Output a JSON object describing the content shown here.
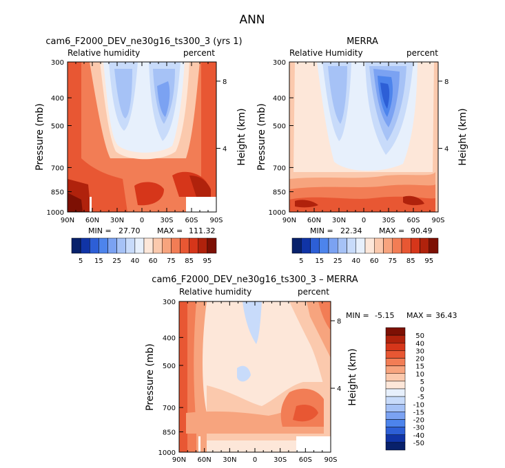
{
  "figure": {
    "title": "ANN"
  },
  "chart_data": [
    {
      "type": "heatmap",
      "title": "cam6_F2000_DEV_ne30g16_ts300_3 (yrs 1)",
      "variable": "Relative humidity",
      "units": "percent",
      "ylabel": "Pressure (mb)",
      "y2label": "Height (km)",
      "x_ticks": [
        "90N",
        "60N",
        "30N",
        "0",
        "30S",
        "60S",
        "90S"
      ],
      "y_ticks": [
        "300",
        "400",
        "500",
        "700",
        "850",
        "1000"
      ],
      "y2_ticks": [
        "8",
        "4"
      ],
      "stats": {
        "min_label": "MIN =",
        "min": "27.70",
        "max_label": "MAX =",
        "max": "111.32"
      },
      "colorbar": {
        "labels": [
          "5",
          "15",
          "25",
          "40",
          "60",
          "75",
          "85",
          "95"
        ],
        "colors": [
          "#08216b",
          "#1034a6",
          "#2d5fd6",
          "#4d84ec",
          "#7ba2f2",
          "#a6c2f6",
          "#c8dbfa",
          "#e7f0fc",
          "#fde7d9",
          "#fbc9ad",
          "#f7a47e",
          "#f27d55",
          "#e85733",
          "#d6361a",
          "#b0220c",
          "#7d1004"
        ]
      }
    },
    {
      "type": "heatmap",
      "title": "MERRA",
      "variable": "Relative Humidity",
      "units": "percent",
      "ylabel": "Pressure (mb)",
      "y2label": "Height (km)",
      "x_ticks": [
        "90N",
        "60N",
        "30N",
        "0",
        "30S",
        "60S",
        "90S"
      ],
      "y_ticks": [
        "300",
        "400",
        "500",
        "700",
        "850",
        "1000"
      ],
      "y2_ticks": [
        "8",
        "4"
      ],
      "stats": {
        "min_label": "MIN =",
        "min": "22.34",
        "max_label": "MAX =",
        "max": "90.49"
      },
      "colorbar": {
        "labels": [
          "5",
          "15",
          "25",
          "40",
          "60",
          "75",
          "85",
          "95"
        ],
        "colors": [
          "#08216b",
          "#1034a6",
          "#2d5fd6",
          "#4d84ec",
          "#7ba2f2",
          "#a6c2f6",
          "#c8dbfa",
          "#e7f0fc",
          "#fde7d9",
          "#fbc9ad",
          "#f7a47e",
          "#f27d55",
          "#e85733",
          "#d6361a",
          "#b0220c",
          "#7d1004"
        ]
      }
    },
    {
      "type": "heatmap",
      "title": "cam6_F2000_DEV_ne30g16_ts300_3 – MERRA",
      "variable": "Relative humidity",
      "units": "percent",
      "ylabel": "Pressure (mb)",
      "y2label": "Height (km)",
      "x_ticks": [
        "90N",
        "60N",
        "30N",
        "0",
        "30S",
        "60S",
        "90S"
      ],
      "y_ticks": [
        "300",
        "400",
        "500",
        "700",
        "850",
        "1000"
      ],
      "y2_ticks": [
        "8",
        "4"
      ],
      "stats": {
        "min_label": "MIN =",
        "min": "-5.15",
        "max_label": "MAX =",
        "max": "36.43"
      },
      "colorbar": {
        "labels": [
          "50",
          "40",
          "30",
          "20",
          "15",
          "10",
          "5",
          "0",
          "-5",
          "-10",
          "-15",
          "-20",
          "-30",
          "-40",
          "-50"
        ],
        "colors": [
          "#7d1004",
          "#b0220c",
          "#d6361a",
          "#e85733",
          "#f27d55",
          "#f7a47e",
          "#fbc9ad",
          "#fde7d9",
          "#e7f0fc",
          "#c8dbfa",
          "#a6c2f6",
          "#7ba2f2",
          "#4d84ec",
          "#2d5fd6",
          "#1034a6",
          "#08216b"
        ]
      }
    }
  ]
}
